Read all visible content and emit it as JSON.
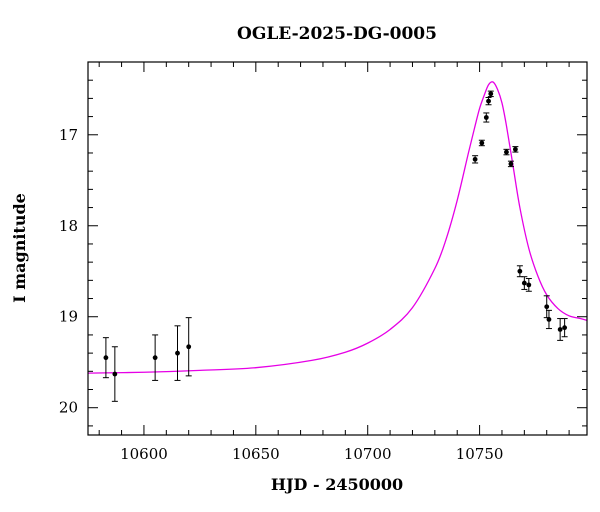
{
  "chart_data": {
    "type": "scatter",
    "title": "OGLE-2025-DG-0005",
    "xlabel": "HJD - 2450000",
    "ylabel": "I magnitude",
    "xlim": [
      10575,
      10798
    ],
    "ylim": [
      20.3,
      16.2
    ],
    "y_inverted": true,
    "x_major_ticks": [
      10600,
      10650,
      10700,
      10750
    ],
    "x_minor_step": 10,
    "y_major_ticks": [
      17,
      18,
      19,
      20
    ],
    "y_minor_step": 0.2,
    "grid": false,
    "legend": "none",
    "colors": {
      "points": "#000000",
      "model": "#e600e6",
      "axes": "#000000"
    },
    "series": [
      {
        "points": [
          {
            "x": 10583,
            "y": 19.45,
            "err": 0.22
          },
          {
            "x": 10587,
            "y": 19.63,
            "err": 0.3
          },
          {
            "x": 10605,
            "y": 19.45,
            "err": 0.25
          },
          {
            "x": 10615,
            "y": 19.4,
            "err": 0.3
          },
          {
            "x": 10620,
            "y": 19.33,
            "err": 0.32
          },
          {
            "x": 10748,
            "y": 17.27,
            "err": 0.04
          },
          {
            "x": 10751,
            "y": 17.09,
            "err": 0.03
          },
          {
            "x": 10753,
            "y": 16.81,
            "err": 0.05
          },
          {
            "x": 10754,
            "y": 16.63,
            "err": 0.04
          },
          {
            "x": 10755,
            "y": 16.55,
            "err": 0.03
          },
          {
            "x": 10762,
            "y": 17.19,
            "err": 0.03
          },
          {
            "x": 10764,
            "y": 17.32,
            "err": 0.03
          },
          {
            "x": 10766,
            "y": 17.16,
            "err": 0.03
          },
          {
            "x": 10768,
            "y": 18.5,
            "err": 0.06
          },
          {
            "x": 10770,
            "y": 18.63,
            "err": 0.07
          },
          {
            "x": 10772,
            "y": 18.65,
            "err": 0.07
          },
          {
            "x": 10780,
            "y": 18.89,
            "err": 0.12
          },
          {
            "x": 10781,
            "y": 19.03,
            "err": 0.1
          },
          {
            "x": 10786,
            "y": 19.14,
            "err": 0.12
          },
          {
            "x": 10788,
            "y": 19.12,
            "err": 0.1
          }
        ]
      }
    ],
    "model": {
      "x": [
        10575,
        10600,
        10625,
        10650,
        10675,
        10690,
        10700,
        10710,
        10720,
        10730,
        10735,
        10740,
        10745,
        10748,
        10750,
        10752,
        10754,
        10756,
        10758,
        10760,
        10762,
        10765,
        10768,
        10772,
        10776,
        10780,
        10785,
        10790,
        10795,
        10798
      ],
      "y": [
        19.62,
        19.61,
        19.59,
        19.56,
        19.48,
        19.39,
        19.29,
        19.14,
        18.9,
        18.47,
        18.15,
        17.72,
        17.2,
        16.9,
        16.71,
        16.57,
        16.45,
        16.42,
        16.5,
        16.65,
        16.9,
        17.35,
        17.8,
        18.25,
        18.55,
        18.76,
        18.91,
        18.99,
        19.02,
        19.04
      ]
    }
  }
}
